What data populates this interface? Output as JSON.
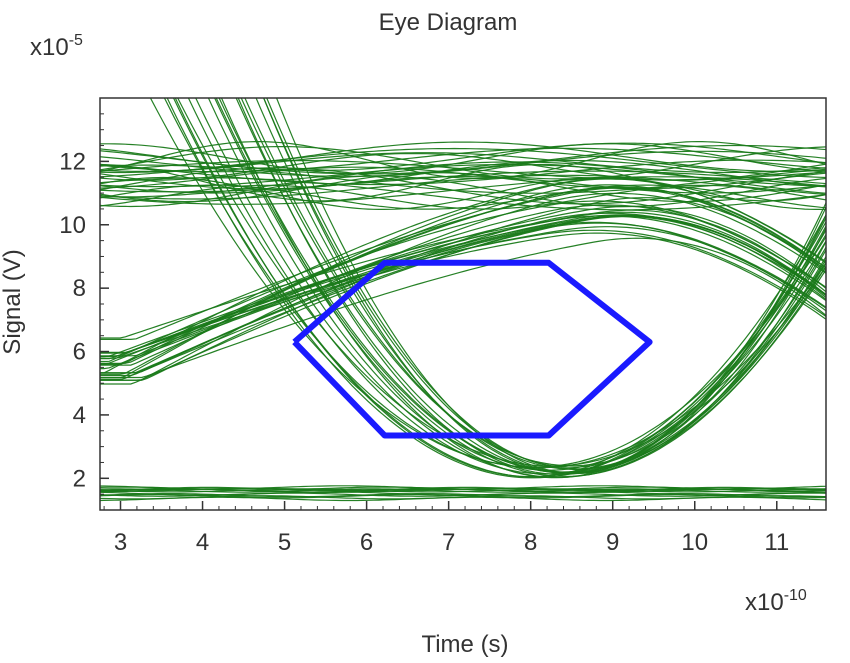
{
  "chart_data": {
    "type": "line",
    "title": "Eye Diagram",
    "xlabel": "Time (s)",
    "ylabel": "Signal (V)",
    "x_multiplier": "x10-10",
    "y_multiplier": "x10-5",
    "x_multiplier_base": "x10",
    "x_multiplier_exp": "-10",
    "y_multiplier_base": "x10",
    "y_multiplier_exp": "-5",
    "xlim": [
      2.75,
      11.6
    ],
    "ylim": [
      1.0,
      14.0
    ],
    "x_ticks": [
      3,
      4,
      5,
      6,
      7,
      8,
      9,
      10,
      11
    ],
    "y_ticks": [
      2,
      4,
      6,
      8,
      10,
      12
    ],
    "x_tick_labels": [
      "3",
      "4",
      "5",
      "6",
      "7",
      "8",
      "9",
      "10",
      "11"
    ],
    "y_tick_labels": [
      "2",
      "4",
      "6",
      "8",
      "10",
      "12"
    ],
    "grid": false,
    "colors": {
      "traces": "#1a7a1a",
      "mask": "#1a1aff",
      "axis": "#333333"
    },
    "series": [
      {
        "kind": "mask",
        "x": [
          5.12,
          6.22,
          8.22,
          9.45,
          8.22,
          6.22,
          5.12
        ],
        "y": [
          6.3,
          8.8,
          8.8,
          6.3,
          3.35,
          3.35,
          6.3
        ]
      },
      {
        "kind": "traces",
        "bit_period": 8.2,
        "crossings": [
          3.05,
          11.25
        ],
        "crossing_level": 6.3,
        "high_level": 11.4,
        "low_level": 1.6
      }
    ]
  }
}
